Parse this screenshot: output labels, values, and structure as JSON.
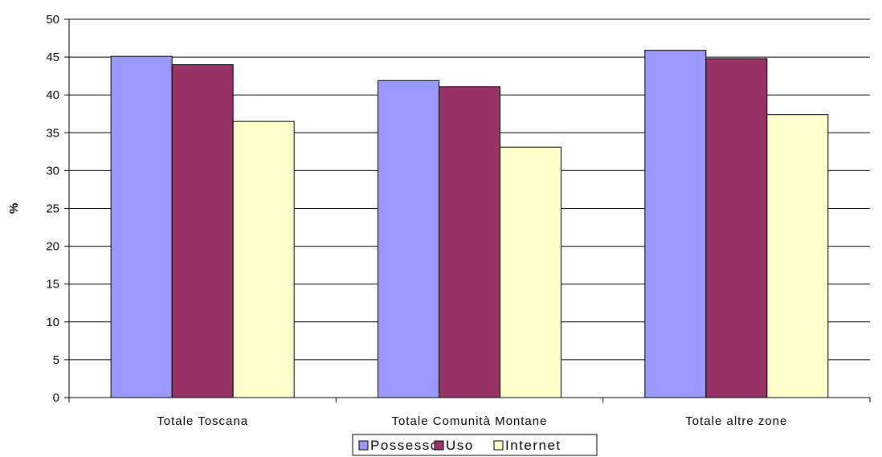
{
  "chart_data": {
    "type": "bar",
    "title": "",
    "xlabel": "",
    "ylabel": "%",
    "ylim": [
      0,
      50
    ],
    "yticks": [
      0,
      5,
      10,
      15,
      20,
      25,
      30,
      35,
      40,
      45,
      50
    ],
    "grid": true,
    "legend_position": "bottom",
    "categories": [
      "Totale Toscana",
      "Totale Comunità Montane",
      "Totale altre zone"
    ],
    "series": [
      {
        "name": "Possesso",
        "color": "#9999ff",
        "values": [
          45.1,
          41.9,
          45.9
        ]
      },
      {
        "name": "Uso",
        "color": "#993366",
        "values": [
          44.0,
          41.1,
          44.8
        ]
      },
      {
        "name": "Internet",
        "color": "#ffffcc",
        "values": [
          36.5,
          33.1,
          37.4
        ]
      }
    ]
  }
}
